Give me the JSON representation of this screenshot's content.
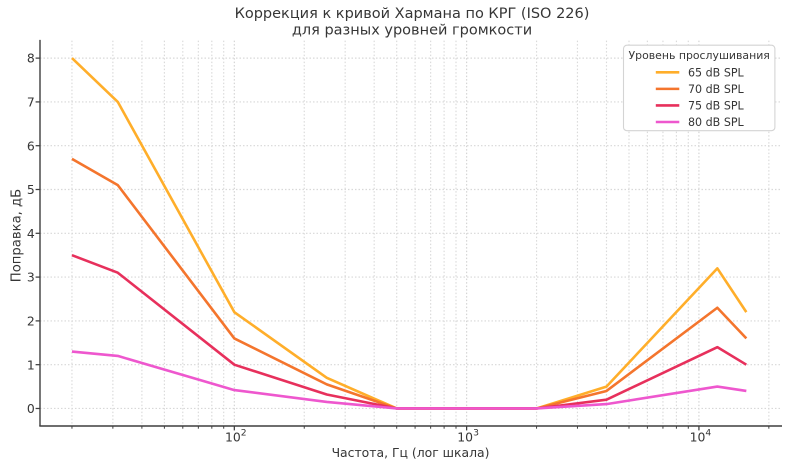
{
  "chart_data": {
    "type": "line",
    "title_lines": [
      "Коррекция к кривой Хармана по КРГ (ISO 226)",
      "для разных уровней громкости"
    ],
    "xlabel": "Частота, Гц (лог шкала)",
    "ylabel": "Поправка, дБ",
    "x_scale": "log",
    "grid": true,
    "x": [
      20,
      31.5,
      100,
      250,
      500,
      1000,
      2000,
      4000,
      12000,
      16000
    ],
    "series": [
      {
        "name": "65 dB SPL",
        "color": "#FFAE2A",
        "values": [
          8.0,
          7.0,
          2.2,
          0.7,
          0,
          0,
          0,
          0.5,
          3.2,
          2.2
        ]
      },
      {
        "name": "70 dB SPL",
        "color": "#F4752D",
        "values": [
          5.7,
          5.1,
          1.6,
          0.55,
          0,
          0,
          0,
          0.4,
          2.3,
          1.6
        ]
      },
      {
        "name": "75 dB SPL",
        "color": "#E7305C",
        "values": [
          3.5,
          3.1,
          1.0,
          0.32,
          0,
          0,
          0,
          0.2,
          1.4,
          1.0
        ]
      },
      {
        "name": "80 dB SPL",
        "color": "#EE57CE",
        "values": [
          1.3,
          1.2,
          0.42,
          0.15,
          0,
          0,
          0,
          0.1,
          0.5,
          0.4
        ]
      }
    ],
    "legend": {
      "title": "Уровень прослушивания",
      "position": "upper right"
    },
    "x_major_ticks": [
      {
        "base": "10",
        "exp": "2",
        "value": 100
      },
      {
        "base": "10",
        "exp": "3",
        "value": 1000
      },
      {
        "base": "10",
        "exp": "4",
        "value": 10000
      }
    ],
    "x_minor_ticks": [
      20,
      30,
      40,
      50,
      60,
      70,
      80,
      90,
      200,
      300,
      400,
      500,
      600,
      700,
      800,
      900,
      2000,
      3000,
      4000,
      5000,
      6000,
      7000,
      8000,
      9000,
      20000
    ],
    "y_ticks": [
      0,
      1,
      2,
      3,
      4,
      5,
      6,
      7,
      8
    ],
    "xlim": [
      14.57,
      22784
    ],
    "ylim": [
      -0.4,
      8.4
    ]
  }
}
